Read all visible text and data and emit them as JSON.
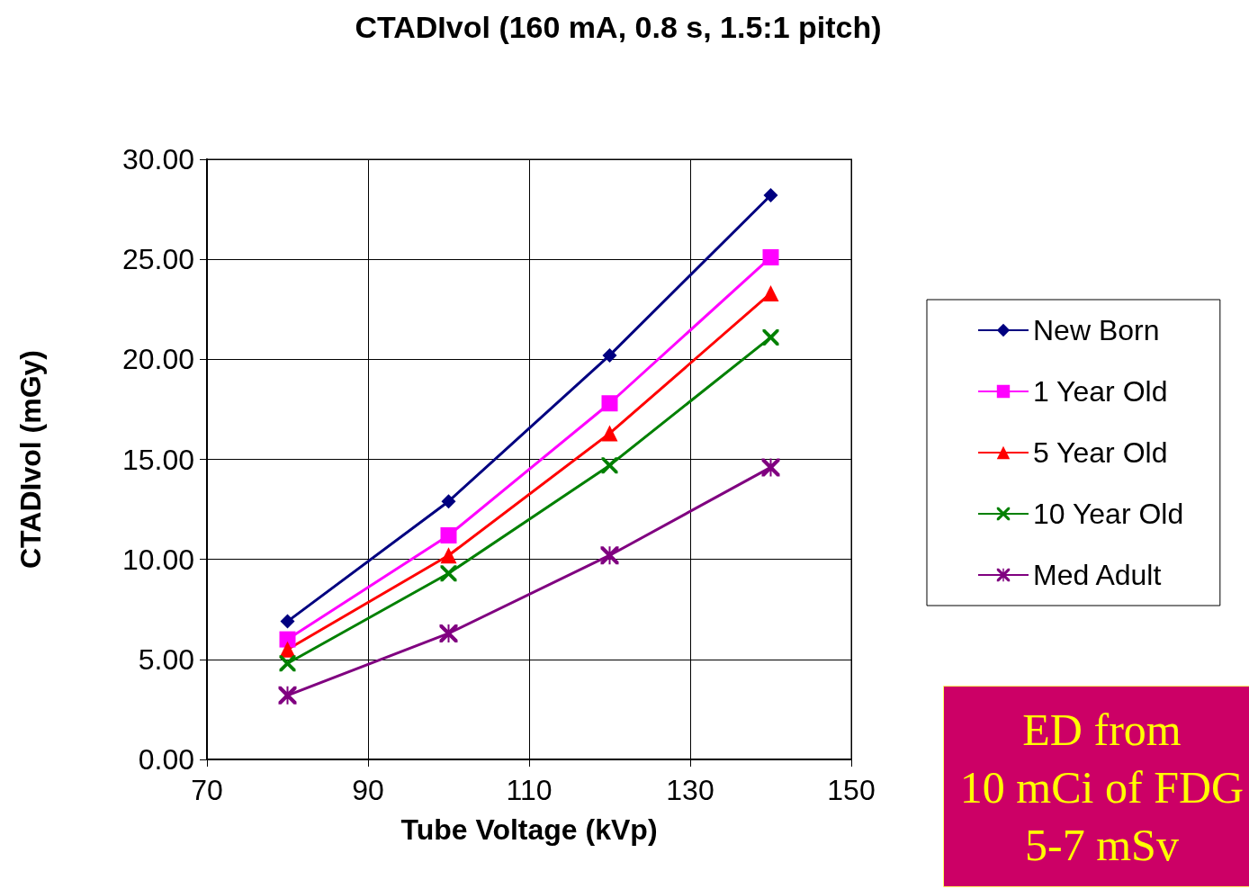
{
  "chart_data": {
    "type": "line",
    "title": "CTADIvol (160 mA, 0.8 s, 1.5:1 pitch)",
    "xlabel": "Tube Voltage (kVp)",
    "ylabel": "CTADIvol (mGy)",
    "x": [
      80,
      100,
      120,
      140
    ],
    "series": [
      {
        "name": "New Born",
        "color": "#000080",
        "marker": "diamond",
        "values": [
          6.9,
          12.9,
          20.2,
          28.2
        ]
      },
      {
        "name": "1 Year Old",
        "color": "#ff00ff",
        "marker": "square",
        "values": [
          6.0,
          11.2,
          17.8,
          25.1
        ]
      },
      {
        "name": "5 Year Old",
        "color": "#ff0000",
        "marker": "triangle",
        "values": [
          5.5,
          10.2,
          16.3,
          23.3
        ]
      },
      {
        "name": "10 Year Old",
        "color": "#008000",
        "marker": "cross",
        "values": [
          4.8,
          9.3,
          14.7,
          21.1
        ]
      },
      {
        "name": "Med Adult",
        "color": "#800080",
        "marker": "star",
        "values": [
          3.2,
          6.3,
          10.2,
          14.6
        ]
      }
    ],
    "xlim": [
      70,
      150
    ],
    "xticks": [
      70,
      90,
      110,
      130,
      150
    ],
    "ylim": [
      0,
      30
    ],
    "yticks": [
      {
        "value": 0,
        "label": "0.00"
      },
      {
        "value": 5,
        "label": "5.00"
      },
      {
        "value": 10,
        "label": "10.00"
      },
      {
        "value": 15,
        "label": "15.00"
      },
      {
        "value": 20,
        "label": "20.00"
      },
      {
        "value": 25,
        "label": "25.00"
      },
      {
        "value": 30,
        "label": "30.00"
      }
    ],
    "grid": true,
    "legend": "right",
    "annotations": [
      "ED from\n10 mCi of FDG\n5-7 mSv"
    ]
  }
}
